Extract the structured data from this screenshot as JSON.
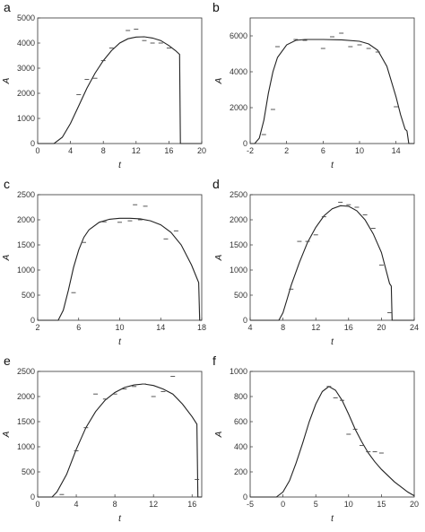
{
  "chart_data": [
    {
      "panel": "a",
      "type": "line",
      "xlabel": "t",
      "ylabel": "A",
      "xlim": [
        0,
        20
      ],
      "ylim": [
        0,
        5000
      ],
      "xticks": [
        0,
        4,
        8,
        12,
        16,
        20
      ],
      "yticks": [
        0,
        1000,
        2000,
        3000,
        4000,
        5000
      ],
      "series": [
        {
          "kind": "line",
          "x": [
            0,
            2,
            3,
            4,
            5,
            6,
            7,
            8,
            9,
            10,
            11,
            12,
            13,
            14,
            15,
            16,
            16.8,
            17.3,
            17.4,
            17.6,
            20
          ],
          "y": [
            0,
            0,
            250,
            800,
            1500,
            2200,
            2800,
            3300,
            3700,
            4000,
            4170,
            4240,
            4250,
            4200,
            4100,
            3900,
            3700,
            3550,
            0,
            0,
            0
          ]
        },
        {
          "kind": "points",
          "x": [
            5,
            6,
            7,
            8,
            9,
            11,
            12,
            13,
            14,
            15,
            16
          ],
          "y": [
            1950,
            2550,
            2600,
            3300,
            3800,
            4500,
            4550,
            4100,
            4000,
            4000,
            3800
          ]
        }
      ]
    },
    {
      "panel": "b",
      "type": "line",
      "xlabel": "t",
      "ylabel": "A",
      "xlim": [
        -2,
        16
      ],
      "ylim": [
        0,
        7000
      ],
      "xticks": [
        -2,
        2,
        6,
        10,
        14
      ],
      "yticks": [
        0,
        2000,
        4000,
        6000
      ],
      "series": [
        {
          "kind": "line",
          "x": [
            -2,
            -1.5,
            -1,
            -0.5,
            0,
            0.5,
            1,
            2,
            3,
            4,
            6,
            8,
            10,
            11,
            12,
            13,
            14,
            14.5,
            15,
            15.2,
            15.4,
            16
          ],
          "y": [
            0,
            0,
            300,
            1300,
            2800,
            4000,
            4800,
            5500,
            5750,
            5800,
            5800,
            5780,
            5700,
            5550,
            5200,
            4300,
            2600,
            1600,
            800,
            700,
            0,
            0
          ]
        },
        {
          "kind": "points",
          "x": [
            -0.5,
            0.5,
            1,
            3,
            4,
            6,
            7,
            8,
            9,
            10,
            11,
            12,
            14
          ],
          "y": [
            500,
            1900,
            5400,
            5800,
            5750,
            5300,
            5950,
            6150,
            5400,
            5500,
            5300,
            5100,
            2050
          ]
        }
      ]
    },
    {
      "panel": "c",
      "type": "line",
      "xlabel": "t",
      "ylabel": "A",
      "xlim": [
        2,
        18
      ],
      "ylim": [
        0,
        2500
      ],
      "xticks": [
        2,
        6,
        10,
        14,
        18
      ],
      "yticks": [
        0,
        500,
        1000,
        1500,
        2000,
        2500
      ],
      "series": [
        {
          "kind": "line",
          "x": [
            2,
            4,
            4.5,
            5,
            5.5,
            6,
            6.5,
            7,
            8,
            9,
            10,
            11,
            12,
            13,
            14,
            15,
            16,
            17,
            17.7,
            17.8,
            18
          ],
          "y": [
            0,
            0,
            200,
            600,
            1050,
            1400,
            1650,
            1800,
            1950,
            2010,
            2030,
            2030,
            2020,
            1980,
            1900,
            1750,
            1500,
            1100,
            750,
            0,
            0
          ]
        },
        {
          "kind": "points",
          "x": [
            5.5,
            6.5,
            8.5,
            10,
            11,
            11.5,
            12,
            12.5,
            14.5,
            15.5
          ],
          "y": [
            550,
            1550,
            1960,
            1950,
            1980,
            2300,
            2000,
            2270,
            1620,
            1780
          ]
        }
      ]
    },
    {
      "panel": "d",
      "type": "line",
      "xlabel": "t",
      "ylabel": "A",
      "xlim": [
        4,
        24
      ],
      "ylim": [
        0,
        2500
      ],
      "xticks": [
        4,
        8,
        12,
        16,
        20,
        24
      ],
      "yticks": [
        0,
        500,
        1000,
        1500,
        2000,
        2500
      ],
      "series": [
        {
          "kind": "line",
          "x": [
            4,
            7.5,
            8,
            8.5,
            9,
            10,
            11,
            12,
            13,
            14,
            15,
            16,
            17,
            18,
            19,
            20,
            21,
            21.2,
            21.3,
            24
          ],
          "y": [
            0,
            0,
            150,
            420,
            700,
            1150,
            1550,
            1850,
            2080,
            2220,
            2280,
            2270,
            2180,
            2000,
            1720,
            1350,
            730,
            680,
            0,
            0
          ]
        },
        {
          "kind": "points",
          "x": [
            9,
            10,
            11,
            12,
            13,
            15,
            16,
            17,
            18,
            19,
            20,
            21
          ],
          "y": [
            620,
            1570,
            1570,
            1700,
            2060,
            2350,
            2300,
            2250,
            2100,
            1830,
            1100,
            150
          ]
        }
      ]
    },
    {
      "panel": "e",
      "type": "line",
      "xlabel": "t",
      "ylabel": "A",
      "xlim": [
        0,
        17
      ],
      "ylim": [
        0,
        2500
      ],
      "xticks": [
        0,
        4,
        8,
        12,
        16
      ],
      "yticks": [
        0,
        500,
        1000,
        1500,
        2000,
        2500
      ],
      "series": [
        {
          "kind": "line",
          "x": [
            0,
            1.5,
            2,
            3,
            4,
            5,
            6,
            7,
            8,
            9,
            10,
            11,
            12,
            13,
            14,
            15,
            16,
            16.5,
            16.6,
            17
          ],
          "y": [
            0,
            0,
            100,
            450,
            950,
            1380,
            1700,
            1930,
            2080,
            2180,
            2230,
            2250,
            2220,
            2150,
            2050,
            1850,
            1600,
            1450,
            0,
            0
          ]
        },
        {
          "kind": "points",
          "x": [
            2.5,
            4,
            5,
            6,
            7,
            8,
            9,
            10,
            11,
            12,
            13,
            14,
            16.5
          ],
          "y": [
            50,
            920,
            1380,
            2050,
            1950,
            2050,
            2150,
            2200,
            2250,
            2000,
            2100,
            2400,
            350
          ]
        }
      ]
    },
    {
      "panel": "f",
      "type": "line",
      "xlabel": "t",
      "ylabel": "A",
      "xlim": [
        -5,
        20
      ],
      "ylim": [
        0,
        1000
      ],
      "xticks": [
        -5,
        0,
        5,
        10,
        15,
        20
      ],
      "yticks": [
        0,
        200,
        400,
        600,
        800,
        1000
      ],
      "series": [
        {
          "kind": "line",
          "x": [
            -5,
            -1,
            0,
            1,
            2,
            3,
            4,
            5,
            6,
            7,
            8,
            9,
            10,
            11,
            12,
            13,
            14,
            15,
            16,
            17,
            18,
            19,
            20
          ],
          "y": [
            0,
            0,
            40,
            130,
            270,
            430,
            600,
            740,
            840,
            880,
            850,
            770,
            660,
            540,
            440,
            350,
            280,
            220,
            170,
            120,
            80,
            40,
            10
          ]
        },
        {
          "kind": "points",
          "x": [
            7,
            8,
            9,
            10,
            11,
            12,
            13,
            14,
            15
          ],
          "y": [
            880,
            790,
            770,
            500,
            540,
            410,
            360,
            360,
            350
          ]
        }
      ]
    }
  ]
}
